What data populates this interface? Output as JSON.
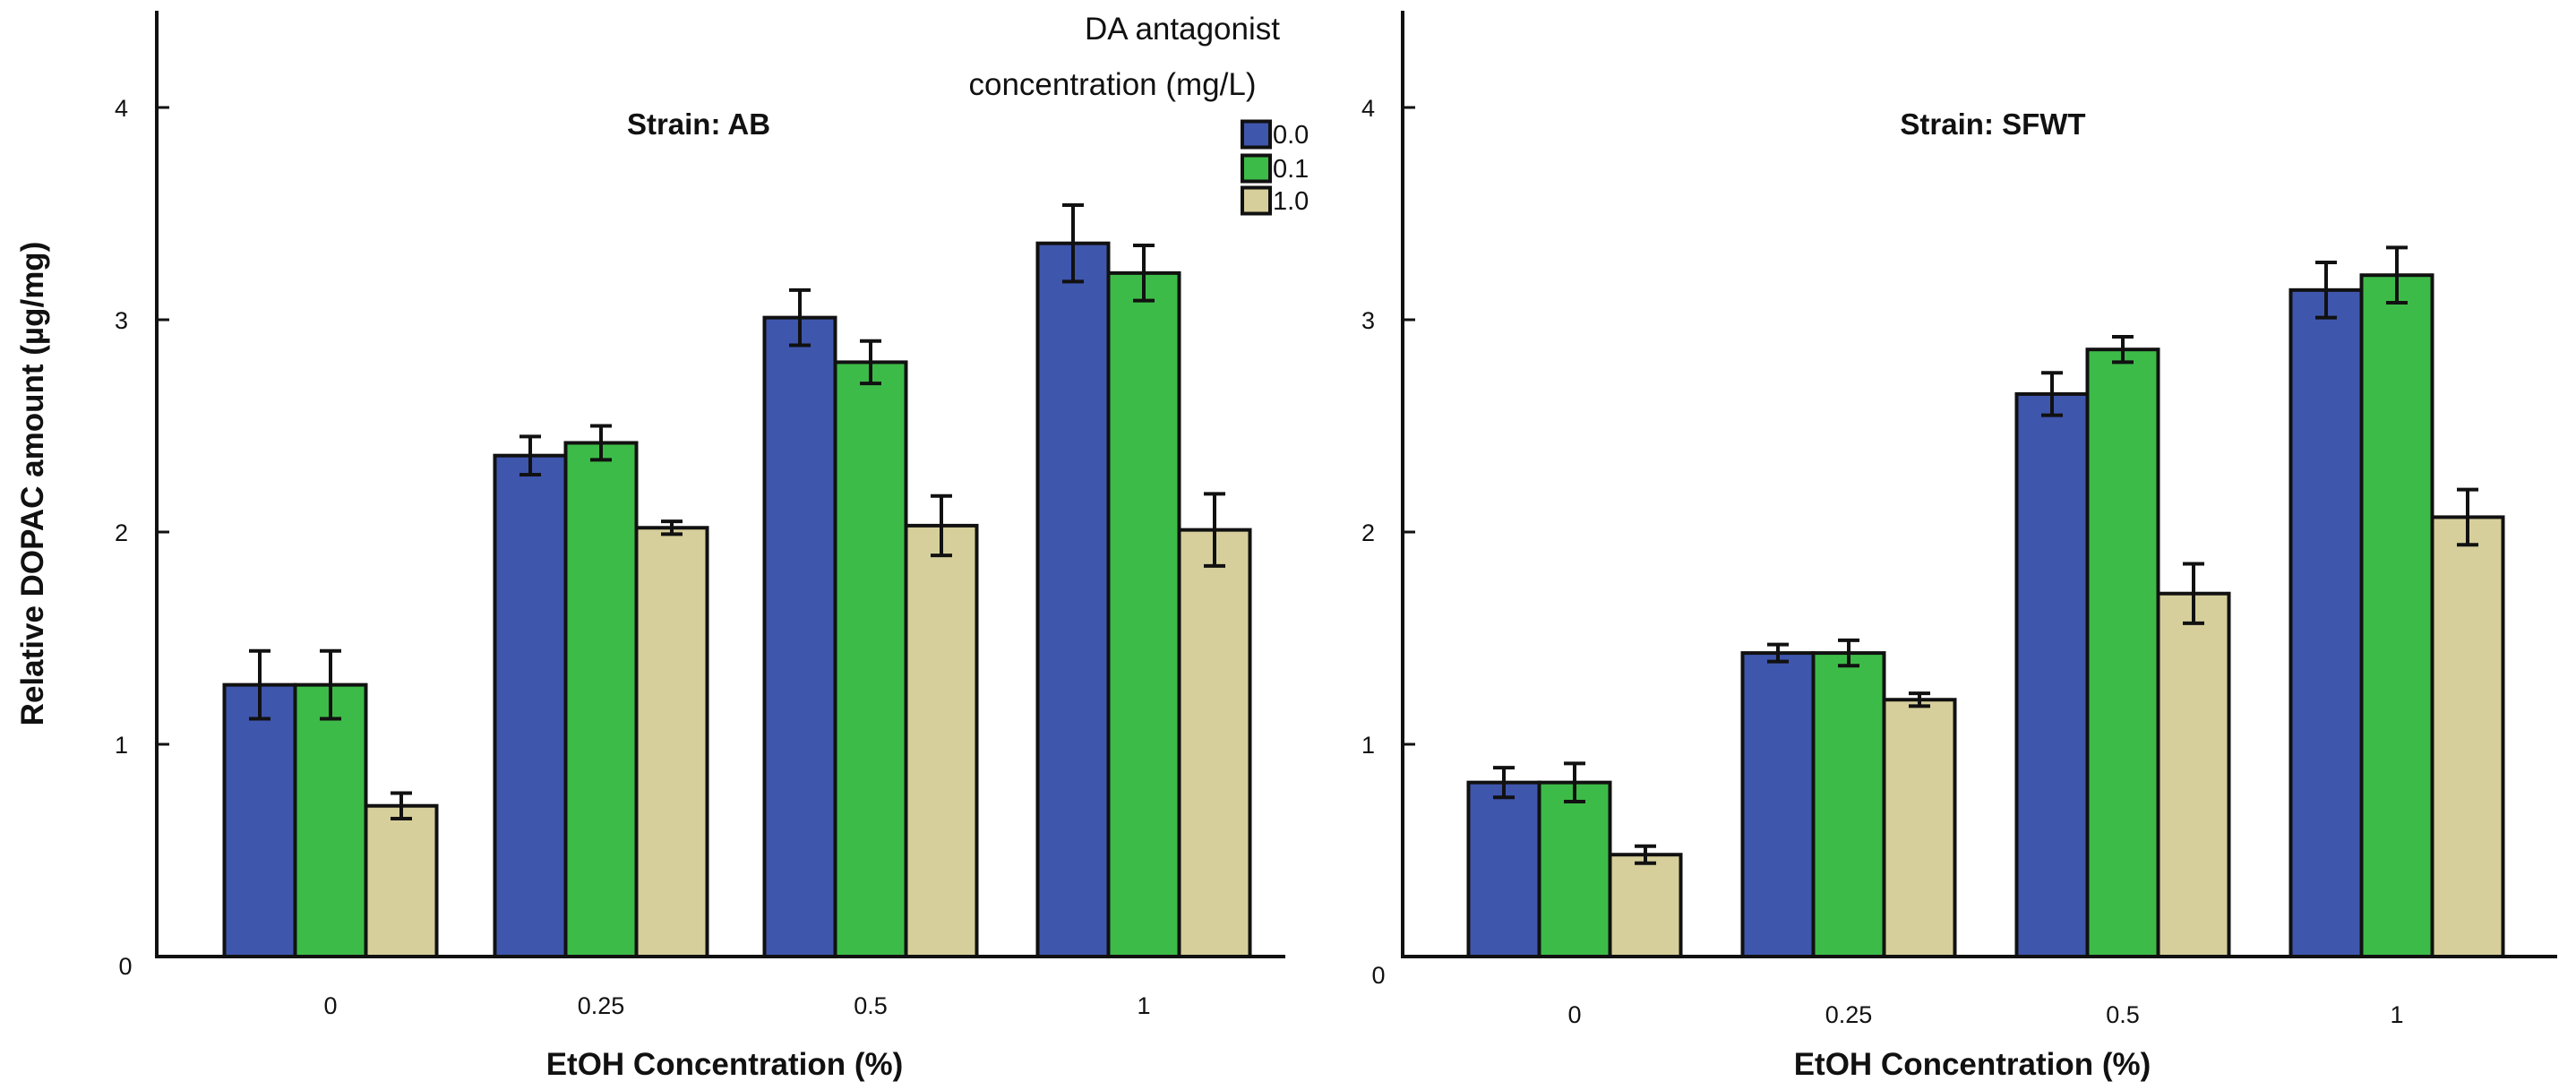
{
  "colors": {
    "series": [
      "#3f56ad",
      "#3dbb48",
      "#d6cf9b"
    ],
    "axis": "#111111"
  },
  "legend": {
    "title_line1": "DA antagonist",
    "title_line2": "concentration  (mg/L)"
  },
  "chart_data": [
    {
      "type": "bar",
      "title": "Strain: AB",
      "xlabel": "EtOH Concentration (%)",
      "ylabel": "Relative DOPAC amount (µg/mg)",
      "categories": [
        "0",
        "0.25",
        "0.5",
        "1"
      ],
      "ylim": [
        0,
        4.4
      ],
      "yticks": [
        {
          "value": 1,
          "label": "1"
        },
        {
          "value": 2,
          "label": "2"
        },
        {
          "value": 3,
          "label": "3"
        },
        {
          "value": 4,
          "label": "4"
        }
      ],
      "origin_label": "0",
      "series": [
        {
          "name": "0.0",
          "values": [
            1.28,
            2.36,
            3.01,
            3.36
          ],
          "errors": [
            0.16,
            0.09,
            0.13,
            0.18
          ]
        },
        {
          "name": "0.1",
          "values": [
            1.28,
            2.42,
            2.8,
            3.22
          ],
          "errors": [
            0.16,
            0.08,
            0.1,
            0.13
          ]
        },
        {
          "name": "1.0",
          "values": [
            0.71,
            2.02,
            2.03,
            2.01
          ],
          "errors": [
            0.06,
            0.03,
            0.14,
            0.17
          ]
        }
      ]
    },
    {
      "type": "bar",
      "title": "Strain: SFWT",
      "xlabel": "EtOH Concentration (%)",
      "ylabel": "",
      "categories": [
        "0",
        "0.25",
        "0.5",
        "1"
      ],
      "ylim": [
        0,
        4.4
      ],
      "yticks": [
        {
          "value": 1,
          "label": "1"
        },
        {
          "value": 2,
          "label": "2"
        },
        {
          "value": 3,
          "label": "3"
        },
        {
          "value": 4,
          "label": "4"
        }
      ],
      "origin_label": "0",
      "series": [
        {
          "name": "0.0",
          "values": [
            0.82,
            1.43,
            2.65,
            3.14
          ],
          "errors": [
            0.07,
            0.04,
            0.1,
            0.13
          ]
        },
        {
          "name": "0.1",
          "values": [
            0.82,
            1.43,
            2.86,
            3.21
          ],
          "errors": [
            0.09,
            0.06,
            0.06,
            0.13
          ]
        },
        {
          "name": "1.0",
          "values": [
            0.48,
            1.21,
            1.71,
            2.07
          ],
          "errors": [
            0.04,
            0.03,
            0.14,
            0.13
          ]
        }
      ]
    }
  ]
}
